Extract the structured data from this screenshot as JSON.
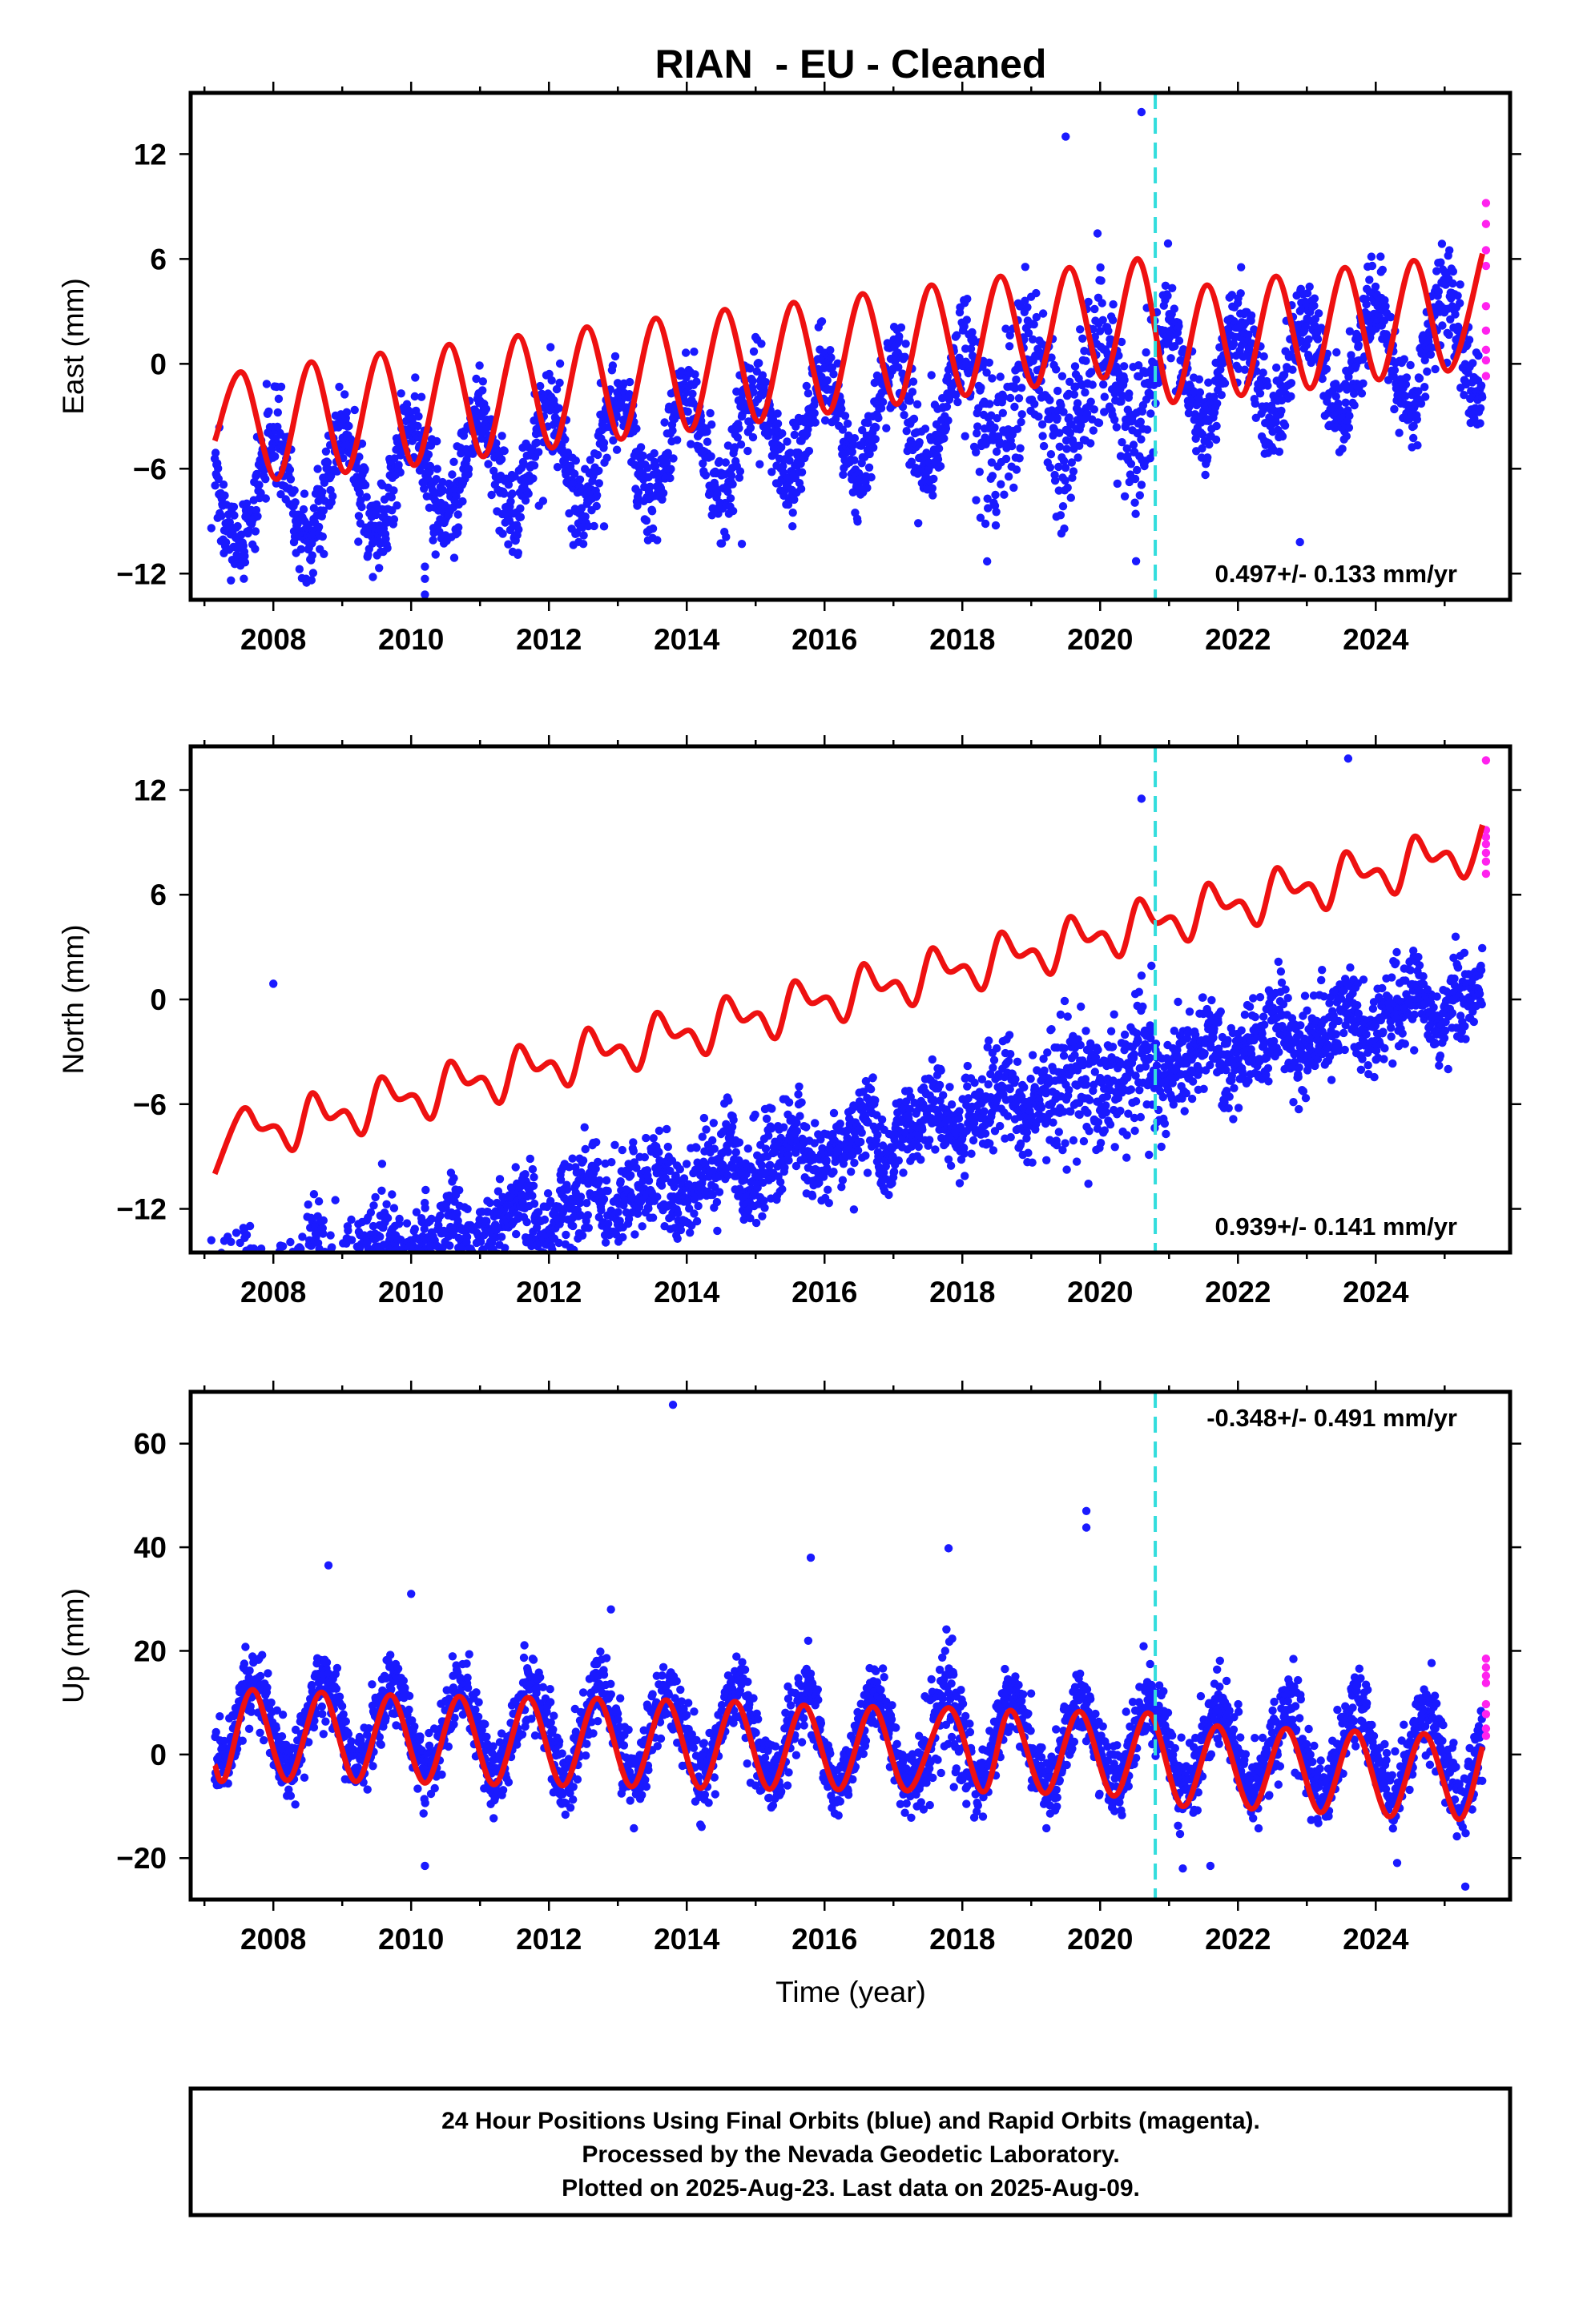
{
  "chart_title": "RIAN  - EU - Cleaned",
  "x_axis_label": "Time (year)",
  "footer": {
    "line1": "24 Hour Positions Using Final Orbits (blue) and Rapid Orbits (magenta).",
    "line2": "Processed by the Nevada Geodetic Laboratory.",
    "line3": "Plotted on 2025-Aug-23. Last data on 2025-Aug-09."
  },
  "colors": {
    "final_orbits": "#1a1aff",
    "rapid_orbits": "#ff22ee",
    "model_fit": "#ee1111",
    "event_line": "#33dddd",
    "frame": "#000000"
  },
  "chart_data": [
    {
      "type": "scatter",
      "ylabel": "East (mm)",
      "xlim": [
        2006.8,
        2025.95
      ],
      "ylim": [
        -13.5,
        15.5
      ],
      "xticks": [
        2008,
        2010,
        2012,
        2014,
        2016,
        2018,
        2020,
        2022,
        2024
      ],
      "yticks": [
        -12,
        -6,
        0,
        6,
        12
      ],
      "ytick_labels": [
        "−12",
        "−6",
        "0",
        "6",
        "12"
      ],
      "event_line_x": 2020.8,
      "rate_label": "0.497+/- 0.133 mm/yr",
      "rate_label_position": "bottom-right",
      "data_start": 2007.15,
      "last_final": 2025.55,
      "last_rapid": 2025.62,
      "trend_intercept": -3.2,
      "trend_rate": 0.497,
      "seasonal_amplitude": 3.0,
      "seasonal_phase": 1.6,
      "semiannual_amplitude": 0.0,
      "semiannual_phase": 0.0,
      "noise_sd": 1.3,
      "high_noise_period": [
        2018.0,
        2020.8
      ],
      "high_noise_sd": 2.4,
      "outliers": [
        [
          2010.2,
          -11.6
        ],
        [
          2010.2,
          -12.3
        ],
        [
          2010.2,
          -13.2
        ],
        [
          2007.1,
          -9.4
        ],
        [
          2014.8,
          -10.3
        ],
        [
          2022.9,
          -10.2
        ],
        [
          2008.3,
          -10.2
        ],
        [
          2018.2,
          -7.8
        ],
        [
          2020.6,
          14.4
        ],
        [
          2019.5,
          13.0
        ],
        [
          2012.8,
          -9.3
        ]
      ],
      "rapid_points": [
        [
          2025.6,
          9.2
        ],
        [
          2025.6,
          8.0
        ],
        [
          2025.6,
          6.5
        ],
        [
          2025.6,
          5.6
        ],
        [
          2025.6,
          3.3
        ],
        [
          2025.6,
          1.9
        ],
        [
          2025.6,
          0.8
        ],
        [
          2025.6,
          0.2
        ],
        [
          2025.6,
          -0.7
        ]
      ],
      "model_curve": [
        [
          2007.15,
          -4.4
        ],
        [
          2007.55,
          -0.5
        ],
        [
          2008.05,
          -6.6
        ],
        [
          2008.55,
          0.1
        ],
        [
          2009.05,
          -6.2
        ],
        [
          2009.55,
          0.6
        ],
        [
          2010.05,
          -5.8
        ],
        [
          2010.55,
          1.1
        ],
        [
          2011.05,
          -5.3
        ],
        [
          2011.55,
          1.6
        ],
        [
          2012.05,
          -4.8
        ],
        [
          2012.55,
          2.1
        ],
        [
          2013.05,
          -4.3
        ],
        [
          2013.55,
          2.6
        ],
        [
          2014.05,
          -3.8
        ],
        [
          2014.55,
          3.1
        ],
        [
          2015.05,
          -3.3
        ],
        [
          2015.55,
          3.5
        ],
        [
          2016.05,
          -2.8
        ],
        [
          2016.55,
          4.0
        ],
        [
          2017.05,
          -2.3
        ],
        [
          2017.55,
          4.5
        ],
        [
          2018.05,
          -1.8
        ],
        [
          2018.55,
          5.0
        ],
        [
          2019.05,
          -1.3
        ],
        [
          2019.55,
          5.5
        ],
        [
          2020.05,
          -0.8
        ],
        [
          2020.55,
          6.0
        ],
        [
          2021.05,
          -2.2
        ],
        [
          2021.55,
          4.5
        ],
        [
          2022.05,
          -1.8
        ],
        [
          2022.55,
          5.0
        ],
        [
          2023.05,
          -1.4
        ],
        [
          2023.55,
          5.5
        ],
        [
          2024.05,
          -0.9
        ],
        [
          2024.55,
          5.9
        ],
        [
          2025.05,
          -0.4
        ],
        [
          2025.55,
          6.3
        ]
      ]
    },
    {
      "type": "scatter",
      "ylabel": "North (mm)",
      "xlim": [
        2006.8,
        2025.95
      ],
      "ylim": [
        -14.5,
        14.5
      ],
      "xticks": [
        2008,
        2010,
        2012,
        2014,
        2016,
        2018,
        2020,
        2022,
        2024
      ],
      "yticks": [
        -12,
        -6,
        0,
        6,
        12
      ],
      "ytick_labels": [
        "−12",
        "−6",
        "0",
        "6",
        "12"
      ],
      "event_line_x": 2020.8,
      "rate_label": "0.939+/- 0.141 mm/yr",
      "rate_label_position": "bottom-right",
      "data_start": 2007.15,
      "last_final": 2025.55,
      "last_rapid": 2025.62,
      "trend_intercept": -8.0,
      "trend_rate": 0.939,
      "seasonal_amplitude": 0.9,
      "seasonal_phase": -1.6,
      "semiannual_amplitude": 0.6,
      "semiannual_phase": 0.0,
      "noise_sd": 1.25,
      "high_noise_period": [
        2019.2,
        2020.8
      ],
      "high_noise_sd": 2.0,
      "outliers": [
        [
          2007.1,
          -13.8
        ],
        [
          2008.0,
          0.9
        ],
        [
          2020.0,
          -4.5
        ],
        [
          2023.6,
          13.8
        ],
        [
          2022.7,
          -2.6
        ],
        [
          2020.6,
          11.5
        ],
        [
          2024.8,
          -0.2
        ],
        [
          2008.9,
          -11.5
        ]
      ],
      "rapid_points": [
        [
          2025.6,
          13.7
        ],
        [
          2025.6,
          9.7
        ],
        [
          2025.6,
          9.3
        ],
        [
          2025.6,
          8.9
        ],
        [
          2025.6,
          8.4
        ],
        [
          2025.6,
          7.9
        ],
        [
          2025.6,
          7.2
        ]
      ],
      "model_curve": [
        [
          2007.15,
          -10.0
        ],
        [
          2007.55,
          -6.3
        ],
        [
          2007.8,
          -7.4
        ],
        [
          2008.05,
          -7.3
        ],
        [
          2008.3,
          -8.6
        ],
        [
          2008.55,
          -5.4
        ],
        [
          2008.8,
          -6.8
        ],
        [
          2009.05,
          -6.4
        ],
        [
          2009.3,
          -7.7
        ],
        [
          2009.55,
          -4.5
        ],
        [
          2009.8,
          -5.7
        ],
        [
          2010.05,
          -5.5
        ],
        [
          2010.3,
          -6.8
        ],
        [
          2010.55,
          -3.6
        ],
        [
          2010.8,
          -4.8
        ],
        [
          2011.05,
          -4.5
        ],
        [
          2011.3,
          -5.9
        ],
        [
          2011.55,
          -2.7
        ],
        [
          2011.8,
          -4.0
        ],
        [
          2012.05,
          -3.6
        ],
        [
          2012.3,
          -4.9
        ],
        [
          2012.55,
          -1.7
        ],
        [
          2012.8,
          -3.1
        ],
        [
          2013.05,
          -2.7
        ],
        [
          2013.3,
          -4.0
        ],
        [
          2013.55,
          -0.8
        ],
        [
          2013.8,
          -2.1
        ],
        [
          2014.05,
          -1.8
        ],
        [
          2014.3,
          -3.1
        ],
        [
          2014.55,
          0.1
        ],
        [
          2014.8,
          -1.2
        ],
        [
          2015.05,
          -0.8
        ],
        [
          2015.3,
          -2.2
        ],
        [
          2015.55,
          1.0
        ],
        [
          2015.8,
          -0.2
        ],
        [
          2016.05,
          0.1
        ],
        [
          2016.3,
          -1.2
        ],
        [
          2016.55,
          2.0
        ],
        [
          2016.8,
          0.6
        ],
        [
          2017.05,
          1.0
        ],
        [
          2017.3,
          -0.3
        ],
        [
          2017.55,
          2.9
        ],
        [
          2017.8,
          1.6
        ],
        [
          2018.05,
          1.9
        ],
        [
          2018.3,
          0.6
        ],
        [
          2018.55,
          3.8
        ],
        [
          2018.8,
          2.5
        ],
        [
          2019.05,
          2.8
        ],
        [
          2019.3,
          1.5
        ],
        [
          2019.55,
          4.7
        ],
        [
          2019.8,
          3.4
        ],
        [
          2020.05,
          3.8
        ],
        [
          2020.3,
          2.5
        ],
        [
          2020.55,
          5.7
        ],
        [
          2020.8,
          4.4
        ],
        [
          2021.05,
          4.7
        ],
        [
          2021.3,
          3.4
        ],
        [
          2021.55,
          6.6
        ],
        [
          2021.8,
          5.3
        ],
        [
          2022.05,
          5.6
        ],
        [
          2022.3,
          4.3
        ],
        [
          2022.55,
          7.5
        ],
        [
          2022.8,
          6.2
        ],
        [
          2023.05,
          6.6
        ],
        [
          2023.3,
          5.2
        ],
        [
          2023.55,
          8.4
        ],
        [
          2023.8,
          7.1
        ],
        [
          2024.05,
          7.4
        ],
        [
          2024.3,
          6.1
        ],
        [
          2024.55,
          9.3
        ],
        [
          2024.8,
          8.0
        ],
        [
          2025.05,
          8.4
        ],
        [
          2025.3,
          7.0
        ],
        [
          2025.55,
          10.0
        ]
      ]
    },
    {
      "type": "scatter",
      "ylabel": "Up (mm)",
      "xlim": [
        2006.8,
        2025.95
      ],
      "ylim": [
        -28,
        70
      ],
      "xticks": [
        2008,
        2010,
        2012,
        2014,
        2016,
        2018,
        2020,
        2022,
        2024
      ],
      "yticks": [
        -20,
        0,
        20,
        40,
        60
      ],
      "ytick_labels": [
        "−20",
        "0",
        "20",
        "40",
        "60"
      ],
      "event_line_x": 2020.8,
      "rate_label": "-0.348+/- 0.491 mm/yr",
      "rate_label_position": "top-right",
      "data_start": 2007.15,
      "last_final": 2025.55,
      "last_rapid": 2025.62,
      "trend_intercept": 3.0,
      "trend_rate": -0.348,
      "seasonal_amplitude": 8.3,
      "seasonal_phase": 3.3,
      "semiannual_amplitude": 0.0,
      "semiannual_phase": 0.0,
      "noise_sd": 3.6,
      "high_noise_period": [
        2017.4,
        2018.2
      ],
      "high_noise_sd": 6.0,
      "outliers": [
        [
          2013.8,
          67.5
        ],
        [
          2019.8,
          47.0
        ],
        [
          2019.8,
          43.8
        ],
        [
          2017.8,
          39.8
        ],
        [
          2015.8,
          38.0
        ],
        [
          2008.8,
          36.5
        ],
        [
          2010.0,
          31.0
        ],
        [
          2012.9,
          28.0
        ],
        [
          2010.2,
          -21.5
        ],
        [
          2025.3,
          -25.5
        ],
        [
          2021.2,
          -22.0
        ],
        [
          2021.6,
          -21.5
        ]
      ],
      "rapid_points": [
        [
          2025.6,
          18.5
        ],
        [
          2025.6,
          16.8
        ],
        [
          2025.6,
          15.2
        ],
        [
          2025.6,
          13.8
        ],
        [
          2025.6,
          9.7
        ],
        [
          2025.6,
          7.8
        ],
        [
          2025.6,
          5.0
        ],
        [
          2025.6,
          3.6
        ]
      ],
      "model_curve": [
        [
          2007.15,
          -2.0
        ],
        [
          2007.3,
          -4.5
        ],
        [
          2007.7,
          12.5
        ],
        [
          2008.2,
          -5.0
        ],
        [
          2008.7,
          12.0
        ],
        [
          2009.2,
          -5.2
        ],
        [
          2009.7,
          11.5
        ],
        [
          2010.2,
          -5.5
        ],
        [
          2010.7,
          11.2
        ],
        [
          2011.2,
          -5.8
        ],
        [
          2011.7,
          11.0
        ],
        [
          2012.2,
          -6.0
        ],
        [
          2012.7,
          10.8
        ],
        [
          2013.2,
          -6.2
        ],
        [
          2013.7,
          10.5
        ],
        [
          2014.2,
          -6.5
        ],
        [
          2014.7,
          10.2
        ],
        [
          2015.2,
          -6.7
        ],
        [
          2015.7,
          9.5
        ],
        [
          2016.2,
          -6.8
        ],
        [
          2016.7,
          9.2
        ],
        [
          2017.2,
          -7.0
        ],
        [
          2017.8,
          9.0
        ],
        [
          2018.3,
          -7.2
        ],
        [
          2018.7,
          8.5
        ],
        [
          2019.2,
          -7.5
        ],
        [
          2019.7,
          8.3
        ],
        [
          2020.2,
          -8.0
        ],
        [
          2020.7,
          8.0
        ],
        [
          2021.2,
          -10.0
        ],
        [
          2021.7,
          5.5
        ],
        [
          2022.2,
          -10.5
        ],
        [
          2022.7,
          5.0
        ],
        [
          2023.2,
          -11.2
        ],
        [
          2023.7,
          4.5
        ],
        [
          2024.2,
          -12.0
        ],
        [
          2024.7,
          4.0
        ],
        [
          2025.2,
          -12.5
        ],
        [
          2025.55,
          1.5
        ]
      ]
    }
  ]
}
